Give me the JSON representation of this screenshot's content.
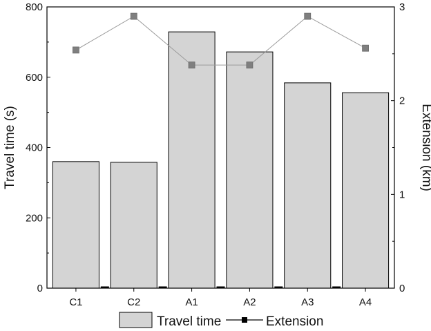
{
  "chart_data": {
    "type": "bar",
    "categories": [
      "C1",
      "C2",
      "A1",
      "A2",
      "A3",
      "A4"
    ],
    "series": [
      {
        "name": "Travel time",
        "type": "bar",
        "axis": "left",
        "values": [
          360,
          358,
          729,
          672,
          584,
          556
        ],
        "color": "#d4d4d4"
      },
      {
        "name": "Extension",
        "type": "line",
        "axis": "right",
        "values": [
          2.54,
          2.9,
          2.38,
          2.38,
          2.9,
          2.56
        ],
        "color": "#7f7f7f"
      }
    ],
    "y_left": {
      "label": "Travel time (s)",
      "range": [
        0,
        800
      ],
      "ticks": [
        "0",
        "200",
        "400",
        "600",
        "800"
      ]
    },
    "y_right": {
      "label": "Extension (km)",
      "range": [
        0,
        3
      ],
      "ticks": [
        "0",
        "1",
        "2",
        "3"
      ]
    },
    "xlabel": "",
    "title": "",
    "legend_position": "bottom",
    "grid": false
  }
}
